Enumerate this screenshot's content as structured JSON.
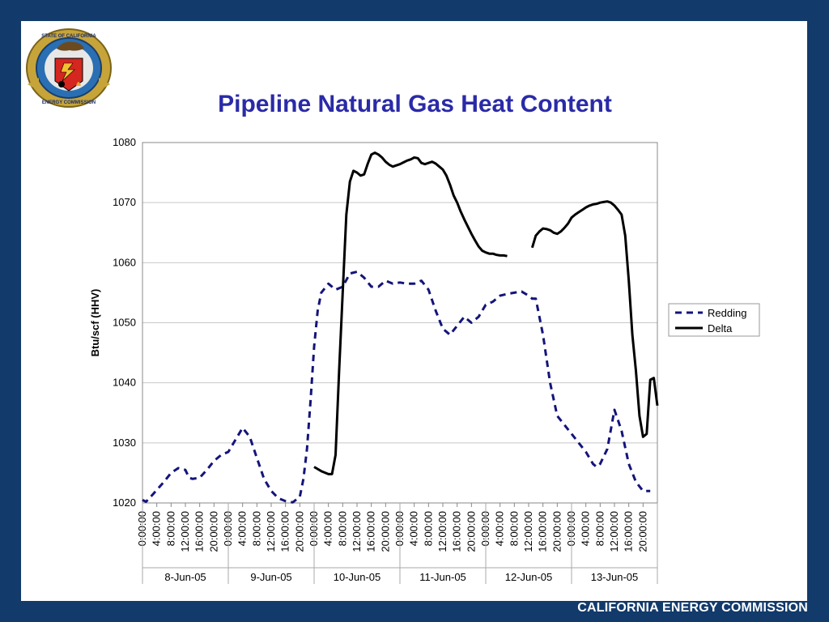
{
  "slide": {
    "title": "Pipeline Natural Gas Heat Content",
    "footer": "CALIFORNIA ENERGY COMMISSION",
    "logo": {
      "ring_top_text": "STATE OF CALIFORNIA",
      "ring_bottom_text": "ENERGY COMMISSION"
    },
    "colors": {
      "frame": "#123a6b",
      "title": "#2a2aa8",
      "redding": "#14147a",
      "delta": "#000000"
    }
  },
  "chart_data": {
    "type": "line",
    "title": "Pipeline Natural Gas Heat Content",
    "xlabel": "",
    "ylabel": "Btu/scf (HHV)",
    "ylim": [
      1020,
      1080
    ],
    "yticks": [
      1020,
      1030,
      1040,
      1050,
      1060,
      1070,
      1080
    ],
    "grid": true,
    "legend": "right",
    "x_range_hours": [
      0,
      144
    ],
    "time_labels": [
      "0:00:00",
      "4:00:00",
      "8:00:00",
      "12:00:00",
      "16:00:00",
      "20:00:00"
    ],
    "dates": [
      "8-Jun-05",
      "9-Jun-05",
      "10-Jun-05",
      "11-Jun-05",
      "12-Jun-05",
      "13-Jun-05"
    ],
    "series": [
      {
        "name": "Redding",
        "style": "dashed",
        "color": "#14147a",
        "x": [
          0,
          1,
          3,
          6,
          8,
          10,
          12,
          13,
          14,
          16,
          18,
          20,
          22,
          24,
          26,
          28,
          30,
          32,
          34,
          36,
          38,
          40,
          42,
          44,
          45,
          46,
          47,
          48,
          49,
          50,
          52,
          54,
          56,
          58,
          60,
          62,
          64,
          66,
          68,
          70,
          72,
          74,
          76,
          78,
          80,
          82,
          84,
          86,
          88,
          90,
          92,
          94,
          96,
          98,
          100,
          102,
          104,
          106,
          108,
          109,
          110,
          112,
          114,
          116,
          118,
          120,
          122,
          124,
          125,
          126,
          127,
          128,
          130,
          132,
          134,
          136,
          138,
          140,
          142
        ],
        "y": [
          1020.5,
          1020.2,
          1021.5,
          1023.5,
          1025,
          1025.8,
          1025.5,
          1024.2,
          1024,
          1024.2,
          1025.5,
          1027,
          1028,
          1028.5,
          1030.5,
          1032.5,
          1031,
          1027.5,
          1024,
          1022,
          1020.8,
          1020.3,
          1020.1,
          1021,
          1024,
          1029,
          1037,
          1046,
          1052,
          1055,
          1056.5,
          1055.5,
          1056,
          1058.2,
          1058.5,
          1057.5,
          1056,
          1056,
          1057,
          1056.5,
          1056.7,
          1056.5,
          1056.5,
          1057,
          1055.5,
          1052,
          1049,
          1048,
          1049.5,
          1051,
          1050,
          1051,
          1053,
          1053.5,
          1054.5,
          1054.8,
          1055,
          1055.2,
          1054.5,
          1054,
          1054,
          1048,
          1040,
          1034.5,
          1033,
          1031.5,
          1030,
          1028.5,
          1027.5,
          1026.5,
          1026,
          1026.5,
          1029,
          1035.5,
          1032,
          1026.5,
          1023.5,
          1022,
          1022
        ]
      },
      {
        "name": "Delta",
        "style": "solid",
        "color": "#000000",
        "segments": [
          {
            "x": [
              48,
              50,
              52,
              53,
              54,
              55,
              56,
              57,
              58,
              59,
              60,
              61,
              62,
              63,
              64,
              65,
              66,
              67,
              68,
              69,
              70,
              71,
              72,
              73,
              74,
              75,
              76,
              77,
              78,
              79,
              80,
              81,
              82,
              83,
              84,
              85,
              86,
              87,
              88,
              89,
              90,
              91,
              92,
              93,
              94,
              95,
              96,
              97,
              98,
              99,
              100,
              101,
              102
            ],
            "y": [
              1026,
              1025.3,
              1024.8,
              1024.8,
              1028,
              1042,
              1055,
              1068,
              1073.5,
              1075.3,
              1075,
              1074.5,
              1074.7,
              1076.5,
              1078,
              1078.3,
              1078,
              1077.5,
              1076.8,
              1076.3,
              1076,
              1076.2,
              1076.4,
              1076.7,
              1077,
              1077.2,
              1077.5,
              1077.4,
              1076.6,
              1076.4,
              1076.6,
              1076.8,
              1076.5,
              1076,
              1075.5,
              1074.5,
              1073,
              1071.2,
              1070,
              1068.5,
              1067.2,
              1066,
              1064.8,
              1063.7,
              1062.7,
              1062,
              1061.7,
              1061.5,
              1061.5,
              1061.3,
              1061.2,
              1061.2,
              1061.1
            ]
          },
          {
            "x": [
              109,
              110,
              111,
              112,
              113,
              114,
              115,
              116,
              117,
              118,
              119,
              120,
              121,
              122,
              123,
              124,
              125,
              126,
              127,
              128,
              129,
              130,
              131,
              132,
              133,
              134,
              135,
              136,
              137,
              138,
              139,
              140,
              141,
              142,
              143,
              144
            ],
            "y": [
              1062.5,
              1064.5,
              1065.2,
              1065.7,
              1065.6,
              1065.4,
              1065,
              1064.8,
              1065.2,
              1065.8,
              1066.5,
              1067.5,
              1068,
              1068.4,
              1068.8,
              1069.2,
              1069.5,
              1069.7,
              1069.8,
              1070,
              1070.1,
              1070.2,
              1070,
              1069.5,
              1068.8,
              1068,
              1064.5,
              1057,
              1048,
              1042,
              1034.5,
              1031,
              1031.5,
              1040.5,
              1040.8,
              1036.2
            ]
          }
        ]
      }
    ]
  }
}
